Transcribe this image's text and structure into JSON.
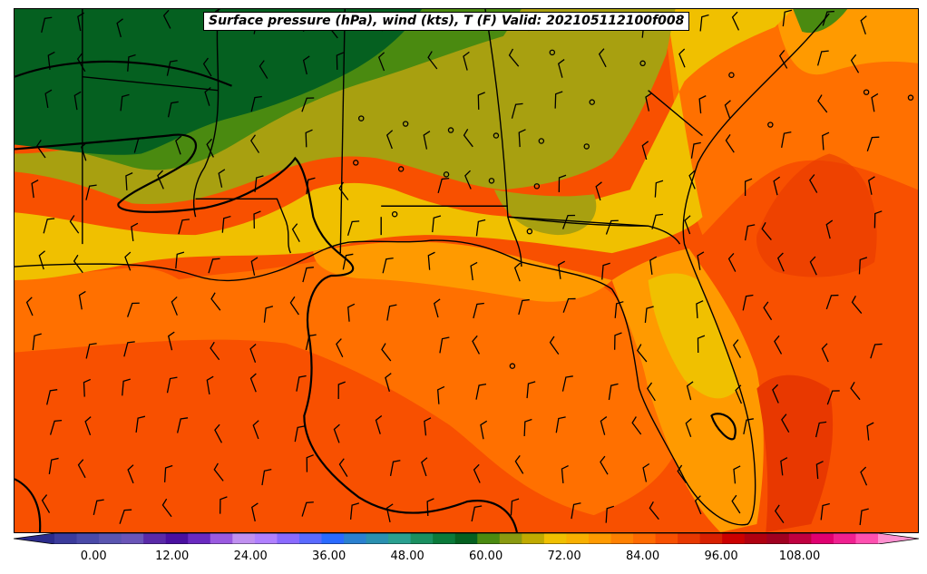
{
  "title": "Surface pressure (hPa), wind (kts), T (F) Valid: 202105112100f008",
  "colorbar": {
    "min": -6,
    "max": 120,
    "step": 3,
    "tick_labels": [
      "0.00",
      "12.00",
      "24.00",
      "36.00",
      "48.00",
      "60.00",
      "72.00",
      "84.00",
      "96.00",
      "108.00"
    ],
    "tick_values": [
      0,
      12,
      24,
      36,
      48,
      60,
      72,
      84,
      96,
      108
    ],
    "colors": [
      "#2b2b8c",
      "#3b3b9c",
      "#4a4aa8",
      "#5a55b0",
      "#6a55b8",
      "#5a2aa8",
      "#4a10a0",
      "#6a2ac0",
      "#9a5ae0",
      "#c090f0",
      "#b080ff",
      "#8a6aff",
      "#5a6aff",
      "#2a6aff",
      "#2a80d0",
      "#2a90b0",
      "#2aa090",
      "#1a9060",
      "#0a7a3a",
      "#056020",
      "#4a8a10",
      "#8a9a10",
      "#c0aa00",
      "#f0c000",
      "#f8b000",
      "#ff9a00",
      "#ff8000",
      "#ff6a00",
      "#f85000",
      "#e83800",
      "#d82000",
      "#cc0000",
      "#b00010",
      "#a00020",
      "#c00040",
      "#e00070",
      "#f02090",
      "#ff50b0",
      "#ff90d0"
    ]
  },
  "temperature_field": {
    "colors": {
      "dark_green": "#056020",
      "green": "#4a8a10",
      "olive": "#a8a010",
      "yellow": "#f0c000",
      "light_orange": "#ff9a00",
      "orange": "#ff7000",
      "dark_orange": "#f85000",
      "red_orange": "#e83800"
    }
  }
}
